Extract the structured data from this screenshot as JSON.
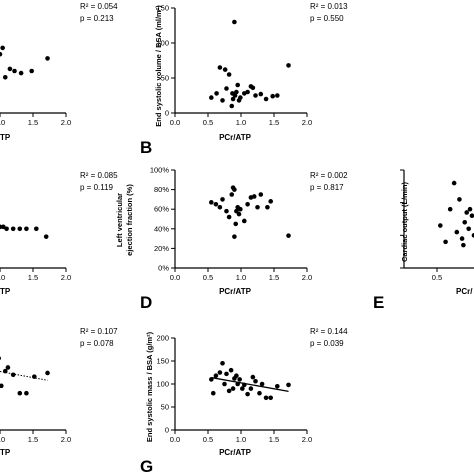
{
  "chart_data": [
    {
      "id": "B",
      "panel_label": "B",
      "type": "scatter",
      "xlabel": "PCr/ATP",
      "ylabel": "End systolic volume / BSA (ml/m²)",
      "xlim": [
        0.0,
        2.0
      ],
      "ylim": [
        0,
        150
      ],
      "x_ticks": [
        "0.0",
        "0.5",
        "1.0",
        "1.5",
        "2.0"
      ],
      "y_ticks": [
        "0",
        "50",
        "100",
        "150"
      ],
      "stat_r2": "R² = 0.013",
      "stat_p": "p = 0.550",
      "trendline": null,
      "points": [
        {
          "x": 0.55,
          "y": 22
        },
        {
          "x": 0.63,
          "y": 28
        },
        {
          "x": 0.68,
          "y": 65
        },
        {
          "x": 0.72,
          "y": 18
        },
        {
          "x": 0.76,
          "y": 62
        },
        {
          "x": 0.78,
          "y": 35
        },
        {
          "x": 0.82,
          "y": 55
        },
        {
          "x": 0.86,
          "y": 10
        },
        {
          "x": 0.87,
          "y": 28
        },
        {
          "x": 0.88,
          "y": 20
        },
        {
          "x": 0.9,
          "y": 130
        },
        {
          "x": 0.91,
          "y": 25
        },
        {
          "x": 0.93,
          "y": 30
        },
        {
          "x": 0.95,
          "y": 40
        },
        {
          "x": 0.97,
          "y": 18
        },
        {
          "x": 0.99,
          "y": 22
        },
        {
          "x": 1.05,
          "y": 28
        },
        {
          "x": 1.1,
          "y": 30
        },
        {
          "x": 1.15,
          "y": 38
        },
        {
          "x": 1.18,
          "y": 36
        },
        {
          "x": 1.22,
          "y": 25
        },
        {
          "x": 1.3,
          "y": 27
        },
        {
          "x": 1.38,
          "y": 20
        },
        {
          "x": 1.48,
          "y": 24
        },
        {
          "x": 1.55,
          "y": 25
        },
        {
          "x": 1.72,
          "y": 68
        }
      ]
    },
    {
      "id": "D",
      "panel_label": "D",
      "type": "scatter",
      "xlabel": "PCr/ATP",
      "ylabel_line1": "Left ventricular",
      "ylabel_line2": "ejection fraction (%)",
      "xlim": [
        0.0,
        2.0
      ],
      "ylim": [
        0,
        100
      ],
      "x_ticks": [
        "0.0",
        "0.5",
        "1.0",
        "1.5",
        "2.0"
      ],
      "y_ticks": [
        "0%",
        "20%",
        "40%",
        "60%",
        "80%",
        "100%"
      ],
      "stat_r2": "R² = 0.002",
      "stat_p": "p = 0.817",
      "trendline": null,
      "points": [
        {
          "x": 0.55,
          "y": 67
        },
        {
          "x": 0.62,
          "y": 65
        },
        {
          "x": 0.68,
          "y": 62
        },
        {
          "x": 0.72,
          "y": 70
        },
        {
          "x": 0.78,
          "y": 58
        },
        {
          "x": 0.82,
          "y": 52
        },
        {
          "x": 0.86,
          "y": 75
        },
        {
          "x": 0.88,
          "y": 82
        },
        {
          "x": 0.9,
          "y": 80
        },
        {
          "x": 0.92,
          "y": 45
        },
        {
          "x": 0.93,
          "y": 58
        },
        {
          "x": 0.95,
          "y": 62
        },
        {
          "x": 0.97,
          "y": 55
        },
        {
          "x": 0.99,
          "y": 60
        },
        {
          "x": 1.05,
          "y": 48
        },
        {
          "x": 1.1,
          "y": 65
        },
        {
          "x": 1.15,
          "y": 72
        },
        {
          "x": 1.2,
          "y": 73
        },
        {
          "x": 1.25,
          "y": 62
        },
        {
          "x": 1.3,
          "y": 75
        },
        {
          "x": 1.4,
          "y": 62
        },
        {
          "x": 1.72,
          "y": 33
        },
        {
          "x": 0.9,
          "y": 32
        },
        {
          "x": 1.45,
          "y": 68
        }
      ]
    },
    {
      "id": "G",
      "panel_label": "G",
      "type": "scatter",
      "xlabel": "PCr/ATP",
      "ylabel": "End systolic mass / BSA (g/m²)",
      "xlim": [
        0.0,
        2.0
      ],
      "ylim": [
        0,
        200
      ],
      "x_ticks": [
        "0.0",
        "0.5",
        "1.0",
        "1.5",
        "2.0"
      ],
      "y_ticks": [
        "0",
        "50",
        "100",
        "150",
        "200"
      ],
      "stat_r2": "R² = 0.144",
      "stat_p": "p = 0.039",
      "trendline": {
        "x": [
          0.55,
          1.72
        ],
        "y": [
          114,
          84
        ],
        "style": "solid"
      },
      "points": [
        {
          "x": 0.55,
          "y": 110
        },
        {
          "x": 0.58,
          "y": 80
        },
        {
          "x": 0.62,
          "y": 118
        },
        {
          "x": 0.68,
          "y": 125
        },
        {
          "x": 0.72,
          "y": 145
        },
        {
          "x": 0.75,
          "y": 100
        },
        {
          "x": 0.78,
          "y": 122
        },
        {
          "x": 0.82,
          "y": 85
        },
        {
          "x": 0.85,
          "y": 130
        },
        {
          "x": 0.88,
          "y": 90
        },
        {
          "x": 0.9,
          "y": 112
        },
        {
          "x": 0.93,
          "y": 118
        },
        {
          "x": 0.95,
          "y": 100
        },
        {
          "x": 0.98,
          "y": 110
        },
        {
          "x": 1.02,
          "y": 90
        },
        {
          "x": 1.05,
          "y": 98
        },
        {
          "x": 1.1,
          "y": 78
        },
        {
          "x": 1.15,
          "y": 90
        },
        {
          "x": 1.18,
          "y": 115
        },
        {
          "x": 1.22,
          "y": 106
        },
        {
          "x": 1.28,
          "y": 80
        },
        {
          "x": 1.32,
          "y": 100
        },
        {
          "x": 1.38,
          "y": 70
        },
        {
          "x": 1.45,
          "y": 70
        },
        {
          "x": 1.55,
          "y": 95
        },
        {
          "x": 1.72,
          "y": 98
        }
      ]
    },
    {
      "id": "left_top",
      "type": "scatter",
      "xlabel": "TP",
      "xlim": [
        0.0,
        2.0
      ],
      "ylim": [
        0,
        100
      ],
      "x_ticks": [
        "1.0",
        "1.5",
        "2.0"
      ],
      "stat_r2": "R² = 0.054",
      "stat_p": "p = 0.213",
      "trendline": null,
      "points": [
        {
          "x": 0.82,
          "y": 50
        },
        {
          "x": 0.88,
          "y": 62
        },
        {
          "x": 0.92,
          "y": 44
        },
        {
          "x": 0.96,
          "y": 64
        },
        {
          "x": 1.0,
          "y": 56
        },
        {
          "x": 1.04,
          "y": 62
        },
        {
          "x": 1.08,
          "y": 34
        },
        {
          "x": 1.15,
          "y": 42
        },
        {
          "x": 1.22,
          "y": 40
        },
        {
          "x": 1.32,
          "y": 38
        },
        {
          "x": 1.48,
          "y": 40
        },
        {
          "x": 1.72,
          "y": 52
        }
      ]
    },
    {
      "id": "left_mid",
      "type": "scatter",
      "xlabel": "TP",
      "xlim": [
        0.0,
        2.0
      ],
      "ylim": [
        0,
        100
      ],
      "x_ticks": [
        "1.0",
        "1.5",
        "2.0"
      ],
      "stat_r2": "R² = 0.085",
      "stat_p": "p = 0.119",
      "trendline": null,
      "points": [
        {
          "x": 0.82,
          "y": 58
        },
        {
          "x": 0.88,
          "y": 62
        },
        {
          "x": 0.92,
          "y": 64
        },
        {
          "x": 0.96,
          "y": 70
        },
        {
          "x": 1.0,
          "y": 42
        },
        {
          "x": 1.05,
          "y": 42
        },
        {
          "x": 1.1,
          "y": 40
        },
        {
          "x": 1.2,
          "y": 40
        },
        {
          "x": 1.3,
          "y": 40
        },
        {
          "x": 1.4,
          "y": 40
        },
        {
          "x": 1.55,
          "y": 40
        },
        {
          "x": 1.7,
          "y": 32
        }
      ]
    },
    {
      "id": "left_bot",
      "type": "scatter",
      "xlabel": "TP",
      "xlim": [
        0.0,
        2.0
      ],
      "ylim": [
        0,
        100
      ],
      "x_ticks": [
        "1.0",
        "1.5",
        "2.0"
      ],
      "stat_r2": "R² = 0.107",
      "stat_p": "p = 0.078",
      "trendline": {
        "x": [
          0.82,
          1.72
        ],
        "y": [
          66,
          54
        ],
        "style": "dotted"
      },
      "points": [
        {
          "x": 0.82,
          "y": 70
        },
        {
          "x": 0.86,
          "y": 62
        },
        {
          "x": 0.9,
          "y": 52
        },
        {
          "x": 0.94,
          "y": 46
        },
        {
          "x": 0.98,
          "y": 78
        },
        {
          "x": 1.02,
          "y": 48
        },
        {
          "x": 1.08,
          "y": 64
        },
        {
          "x": 1.12,
          "y": 68
        },
        {
          "x": 1.2,
          "y": 60
        },
        {
          "x": 1.3,
          "y": 40
        },
        {
          "x": 1.4,
          "y": 40
        },
        {
          "x": 1.52,
          "y": 58
        },
        {
          "x": 1.72,
          "y": 62
        }
      ]
    },
    {
      "id": "E",
      "panel_label": "E",
      "type": "scatter",
      "xlabel": "PCr/",
      "ylabel": "Cardiac output (L/min)",
      "x_ticks": [
        "0.5"
      ],
      "xlim": [
        0.0,
        2.0
      ],
      "ylim": [
        0,
        15
      ],
      "trendline": null,
      "points": [
        {
          "x": 0.55,
          "y": 6.5
        },
        {
          "x": 0.63,
          "y": 4.0
        },
        {
          "x": 0.7,
          "y": 9.0
        },
        {
          "x": 0.76,
          "y": 13.0
        },
        {
          "x": 0.8,
          "y": 5.5
        },
        {
          "x": 0.84,
          "y": 10.5
        },
        {
          "x": 0.88,
          "y": 4.5
        },
        {
          "x": 0.9,
          "y": 3.5
        },
        {
          "x": 0.92,
          "y": 7.0
        },
        {
          "x": 0.95,
          "y": 8.5
        },
        {
          "x": 0.98,
          "y": 6.0
        },
        {
          "x": 1.0,
          "y": 9.0
        },
        {
          "x": 1.03,
          "y": 8.0
        },
        {
          "x": 1.06,
          "y": 5.0
        }
      ]
    }
  ]
}
